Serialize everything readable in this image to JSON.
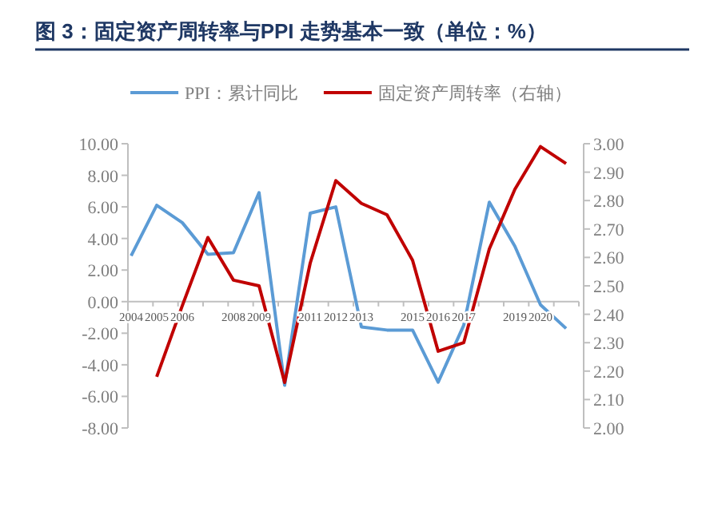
{
  "chart_data": {
    "type": "line",
    "title": "图 3：固定资产周转率与PPI 走势基本一致（单位：%）",
    "categories": [
      "2004",
      "2005",
      "2006",
      null,
      "2008",
      "2009",
      null,
      "2011",
      "2012",
      "2013",
      null,
      "2015",
      "2016",
      "2017",
      null,
      "2019",
      "2020",
      null
    ],
    "series": [
      {
        "name": "PPI：累计同比",
        "color": "#5b9bd5",
        "values": [
          2.9,
          6.1,
          5.0,
          3.0,
          3.1,
          6.9,
          -5.3,
          5.6,
          6.0,
          -1.6,
          -1.8,
          -1.8,
          -5.1,
          -1.5,
          6.3,
          3.5,
          -0.2,
          -1.7
        ]
      },
      {
        "name": "固定资产周转率（右轴）",
        "color": "#c00000",
        "axis": "y2",
        "values": [
          null,
          2.18,
          2.43,
          2.67,
          2.52,
          2.5,
          2.16,
          2.58,
          2.87,
          2.79,
          2.75,
          2.59,
          2.27,
          2.3,
          2.63,
          2.84,
          2.99,
          2.93
        ]
      }
    ],
    "ylim": [
      -8,
      10
    ],
    "yticks": [
      {
        "value": -8,
        "label": "-8.00"
      },
      {
        "value": -6,
        "label": "-6.00"
      },
      {
        "value": -4,
        "label": "-4.00"
      },
      {
        "value": -2,
        "label": "-2.00"
      },
      {
        "value": 0,
        "label": "0.00"
      },
      {
        "value": 2,
        "label": "2.00"
      },
      {
        "value": 4,
        "label": "4.00"
      },
      {
        "value": 6,
        "label": "6.00"
      },
      {
        "value": 8,
        "label": "8.00"
      },
      {
        "value": 10,
        "label": "10.00"
      }
    ],
    "y2lim": [
      2,
      3
    ],
    "y2ticks": [
      {
        "value": 2,
        "label": "2.00"
      },
      {
        "value": 2.1,
        "label": "2.10"
      },
      {
        "value": 2.2,
        "label": "2.20"
      },
      {
        "value": 2.3,
        "label": "2.30"
      },
      {
        "value": 2.4,
        "label": "2.40"
      },
      {
        "value": 2.5,
        "label": "2.50"
      },
      {
        "value": 2.6,
        "label": "2.60"
      },
      {
        "value": 2.7,
        "label": "2.70"
      },
      {
        "value": 2.8,
        "label": "2.80"
      },
      {
        "value": 2.9,
        "label": "2.90"
      },
      {
        "value": 3,
        "label": "3.00"
      }
    ],
    "legend": "top",
    "grid": false,
    "marker": "none",
    "line_style": "solid"
  }
}
